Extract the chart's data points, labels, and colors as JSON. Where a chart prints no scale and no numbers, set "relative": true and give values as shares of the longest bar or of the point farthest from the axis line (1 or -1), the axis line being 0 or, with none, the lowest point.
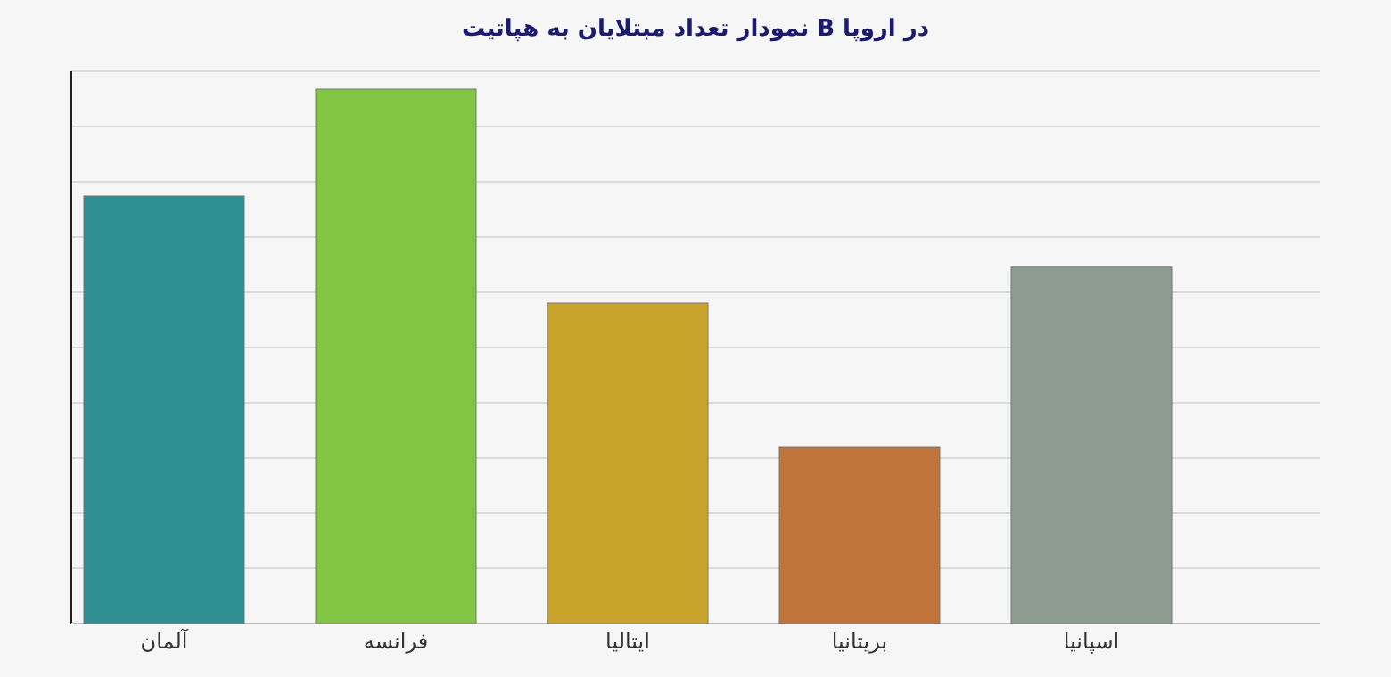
{
  "chart_data": {
    "type": "bar",
    "title": "در اروپا B نمودار تعداد مبتلایان به هپاتیت",
    "categories": [
      "آلمان",
      "فرانسه",
      "ایتالیا",
      "بریتانیا",
      "اسپانیا"
    ],
    "values": [
      0.8,
      1,
      0.6,
      0.33,
      0.667
    ],
    "colors": [
      "#2f8f93",
      "#82c443",
      "#c9a42c",
      "#c0743a",
      "#8e9c90"
    ],
    "relative": true,
    "grid": "y"
  }
}
